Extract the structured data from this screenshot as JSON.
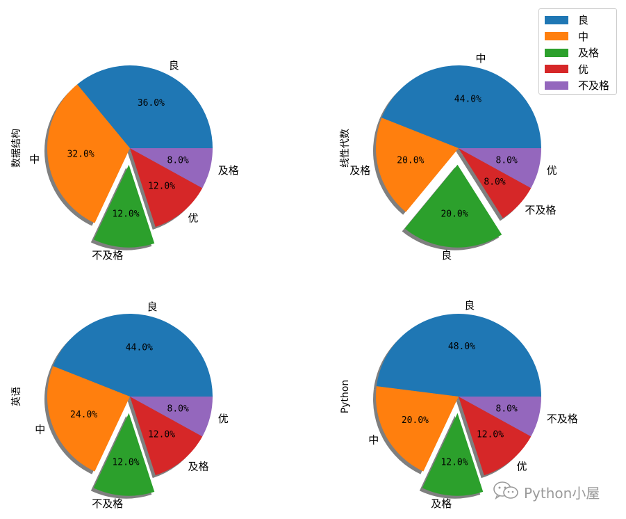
{
  "chart_data": [
    {
      "type": "pie",
      "ylabel": "数据结构",
      "slices": [
        {
          "label": "良",
          "value": 36.0,
          "pct_label": "36.0%",
          "color": "#1f77b4",
          "exploded": false
        },
        {
          "label": "中",
          "value": 32.0,
          "pct_label": "32.0%",
          "color": "#ff7f0e",
          "exploded": false
        },
        {
          "label": "不及格",
          "value": 12.0,
          "pct_label": "12.0%",
          "color": "#2ca02c",
          "exploded": true
        },
        {
          "label": "优",
          "value": 12.0,
          "pct_label": "12.0%",
          "color": "#d62728",
          "exploded": false
        },
        {
          "label": "及格",
          "value": 8.0,
          "pct_label": "8.0%",
          "color": "#9467bd",
          "exploded": false
        }
      ]
    },
    {
      "type": "pie",
      "ylabel": "线性代数",
      "slices": [
        {
          "label": "中",
          "value": 44.0,
          "pct_label": "44.0%",
          "color": "#1f77b4",
          "exploded": false
        },
        {
          "label": "及格",
          "value": 20.0,
          "pct_label": "20.0%",
          "color": "#ff7f0e",
          "exploded": false
        },
        {
          "label": "良",
          "value": 20.0,
          "pct_label": "20.0%",
          "color": "#2ca02c",
          "exploded": true
        },
        {
          "label": "不及格",
          "value": 8.0,
          "pct_label": "8.0%",
          "color": "#d62728",
          "exploded": false
        },
        {
          "label": "优",
          "value": 8.0,
          "pct_label": "8.0%",
          "color": "#9467bd",
          "exploded": false
        }
      ]
    },
    {
      "type": "pie",
      "ylabel": "英语",
      "slices": [
        {
          "label": "良",
          "value": 44.0,
          "pct_label": "44.0%",
          "color": "#1f77b4",
          "exploded": false
        },
        {
          "label": "中",
          "value": 24.0,
          "pct_label": "24.0%",
          "color": "#ff7f0e",
          "exploded": false
        },
        {
          "label": "不及格",
          "value": 12.0,
          "pct_label": "12.0%",
          "color": "#2ca02c",
          "exploded": true
        },
        {
          "label": "及格",
          "value": 12.0,
          "pct_label": "12.0%",
          "color": "#d62728",
          "exploded": false
        },
        {
          "label": "优",
          "value": 8.0,
          "pct_label": "8.0%",
          "color": "#9467bd",
          "exploded": false
        }
      ]
    },
    {
      "type": "pie",
      "ylabel": "Python",
      "slices": [
        {
          "label": "良",
          "value": 48.0,
          "pct_label": "48.0%",
          "color": "#1f77b4",
          "exploded": false
        },
        {
          "label": "中",
          "value": 20.0,
          "pct_label": "20.0%",
          "color": "#ff7f0e",
          "exploded": false
        },
        {
          "label": "及格",
          "value": 12.0,
          "pct_label": "12.0%",
          "color": "#2ca02c",
          "exploded": true
        },
        {
          "label": "优",
          "value": 12.0,
          "pct_label": "12.0%",
          "color": "#d62728",
          "exploded": false
        },
        {
          "label": "不及格",
          "value": 8.0,
          "pct_label": "8.0%",
          "color": "#9467bd",
          "exploded": false
        }
      ]
    }
  ],
  "legend": {
    "placement": "top-right",
    "items": [
      {
        "label": "良",
        "color": "#1f77b4"
      },
      {
        "label": "中",
        "color": "#ff7f0e"
      },
      {
        "label": "及格",
        "color": "#2ca02c"
      },
      {
        "label": "优",
        "color": "#d62728"
      },
      {
        "label": "不及格",
        "color": "#9467bd"
      }
    ]
  },
  "watermark": {
    "text": "Python小屋",
    "icon": "wechat-icon"
  }
}
